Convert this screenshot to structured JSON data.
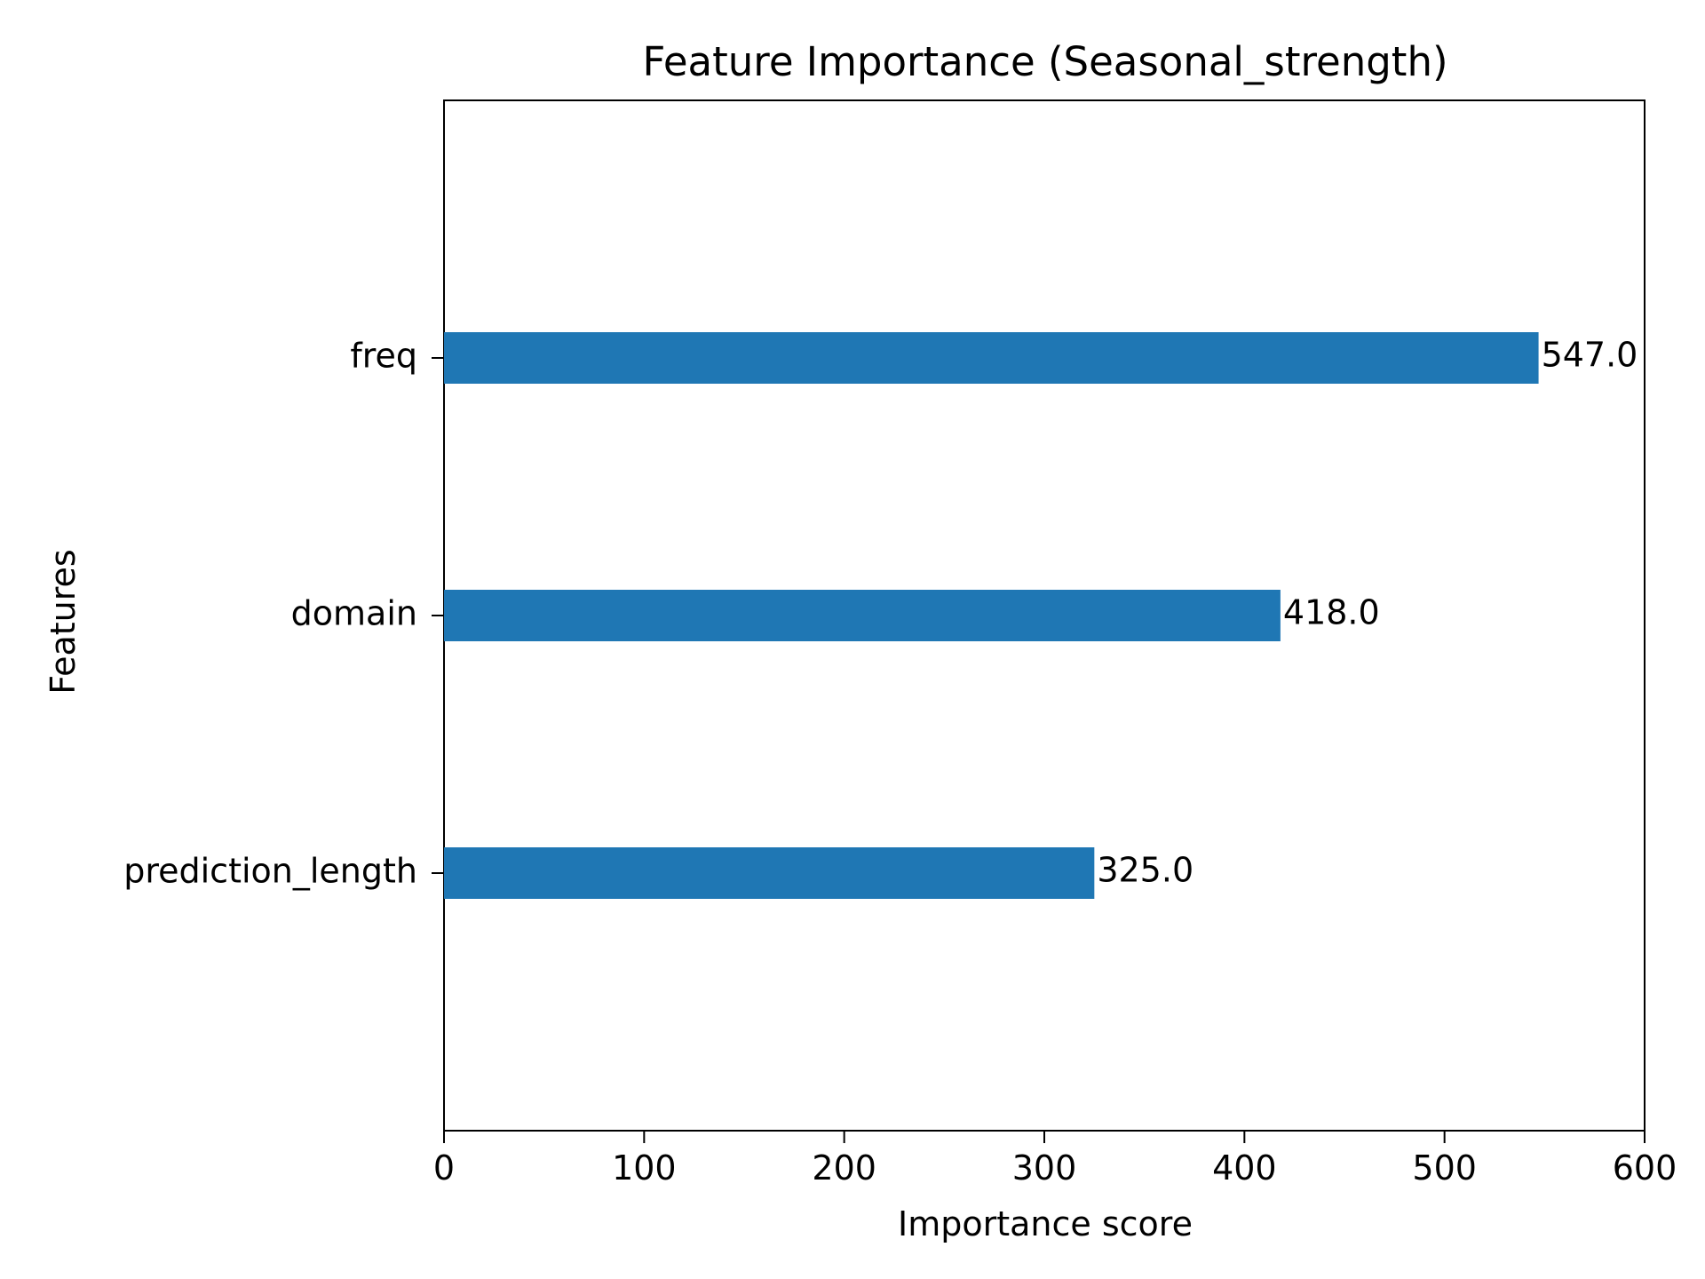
{
  "chart_data": {
    "type": "bar",
    "orientation": "horizontal",
    "title": "Feature Importance (Seasonal_strength)",
    "xlabel": "Importance score",
    "ylabel": "Features",
    "categories": [
      "freq",
      "domain",
      "prediction_length"
    ],
    "values": [
      547.0,
      418.0,
      325.0
    ],
    "value_labels": [
      "547.0",
      "418.0",
      "325.0"
    ],
    "xlim": [
      0,
      600
    ],
    "xticks": [
      0,
      100,
      200,
      300,
      400,
      500,
      600
    ],
    "xtick_labels": [
      "0",
      "100",
      "200",
      "300",
      "400",
      "500",
      "600"
    ],
    "grid": false,
    "bar_color": "#1f77b4",
    "axis_color": "#000000"
  }
}
